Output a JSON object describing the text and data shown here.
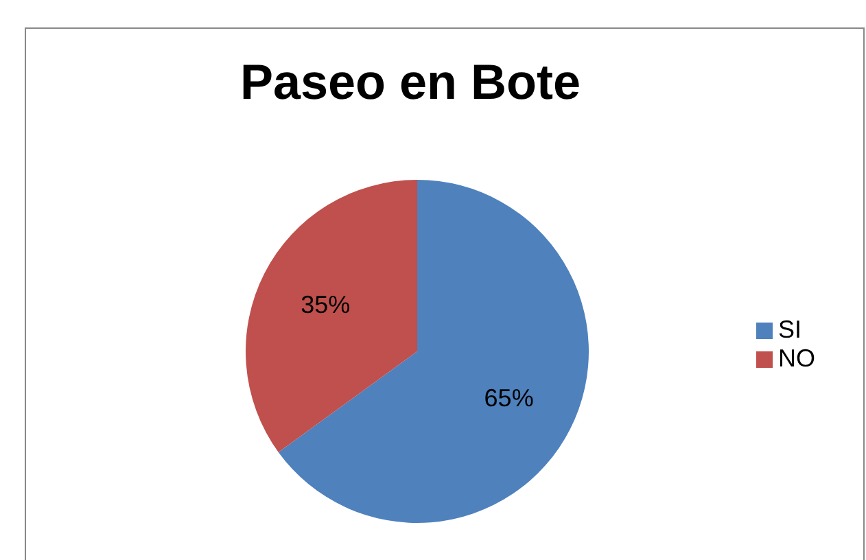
{
  "chart_data": {
    "type": "pie",
    "title": "Paseo en Bote",
    "categories": [
      "SI",
      "NO"
    ],
    "values": [
      65,
      35
    ],
    "colors": [
      "#4f81bd",
      "#c0504d"
    ],
    "value_labels": [
      "65%",
      "35%"
    ],
    "legend": "right"
  }
}
